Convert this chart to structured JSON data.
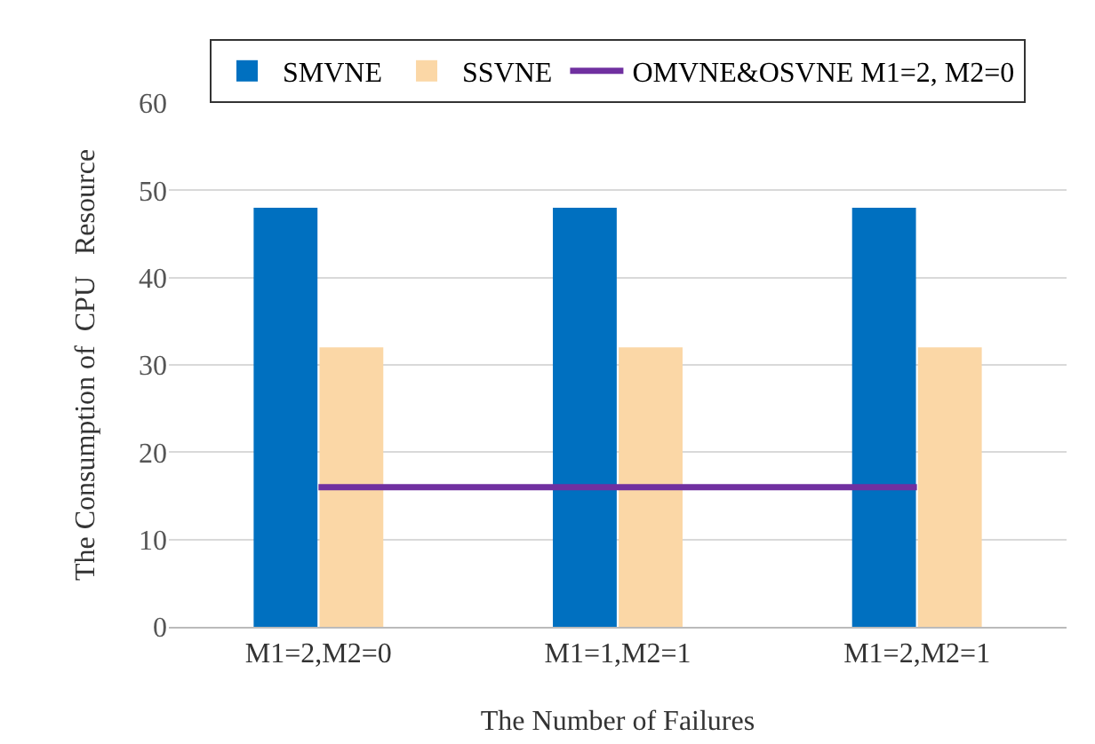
{
  "chart_data": {
    "type": "bar",
    "xlabel": "The Number of Failures",
    "ylabel": "The Consumption of  CPU   Resource",
    "categories": [
      "M1=2,M2=0",
      "M1=1,M2=1",
      "M1=2,M2=1"
    ],
    "series": [
      {
        "name": "SMVNE",
        "color": "#0070c0",
        "values": [
          48,
          48,
          48
        ]
      },
      {
        "name": "SSVNE",
        "color": "#fbd7a6",
        "values": [
          32,
          32,
          32
        ]
      },
      {
        "name": "OMVNE&OSVNE M1=2, M2=0",
        "type": "line",
        "color": "#7030a0",
        "values": [
          16,
          16,
          16
        ]
      }
    ],
    "ylim": [
      0,
      60
    ],
    "yticks": [
      0,
      10,
      20,
      30,
      40,
      50,
      60
    ],
    "grid": "y",
    "legend": "top",
    "marker": "none",
    "line_style": "solid"
  }
}
